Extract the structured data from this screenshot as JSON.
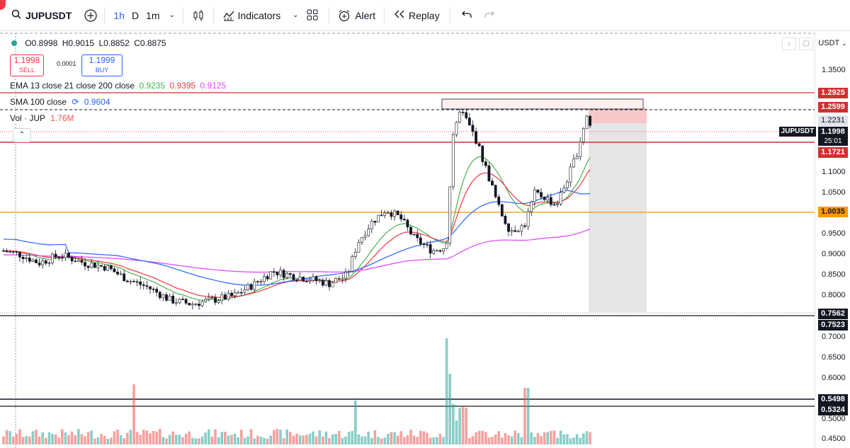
{
  "toolbar": {
    "symbol": "JUPUSDT",
    "interval_1h": "1h",
    "interval_d": "D",
    "interval_1m": "1m",
    "indicators_label": "Indicators",
    "alert_label": "Alert",
    "replay_label": "Replay"
  },
  "legend": {
    "open": "O0.8998",
    "high": "H0.9015",
    "low": "L0.8852",
    "close": "C0.8875",
    "sell_price": "1.1998",
    "sell_label": "SELL",
    "spread": "0.0001",
    "buy_price": "1.1999",
    "buy_label": "BUY",
    "ema_label": "EMA 13 close 21 close 200 close",
    "ema_values": [
      "0.9235",
      "0.9395",
      "0.9125"
    ],
    "sma_label": "SMA 100 close",
    "sma_value": "0.9604",
    "vol_label": "Vol · JUP",
    "vol_value": "1.76M"
  },
  "price_scale": {
    "currency": "USDT",
    "ticks": [
      "1.3500",
      "1.1000",
      "1.0500",
      "0.9500",
      "0.9000",
      "0.8500",
      "0.8000",
      "0.7000",
      "0.6500",
      "0.6000",
      "0.5000",
      "0.4500"
    ],
    "labels": {
      "l_1_2925": "1.2925",
      "l_1_2599": "1.2599",
      "l_1_2231": "1.2231",
      "l_1_1998": "1.1998",
      "countdown": "25:01",
      "l_1_1721": "1.1721",
      "l_1_0035": "1.0035",
      "l_0_7562": "0.7562",
      "l_0_7523": "0.7523",
      "l_0_5498": "0.5498",
      "l_0_5324": "0.5324"
    },
    "symbol_tag": "JUPUSDT"
  },
  "colors": {
    "up": "#26a69a",
    "down": "#ef5350",
    "ema13": "#4caf50",
    "ema21": "#f23645",
    "ema200": "#e040fb",
    "sma100": "#2962ff",
    "orange_line": "#ff9800",
    "red_line": "#d32f2f"
  }
}
